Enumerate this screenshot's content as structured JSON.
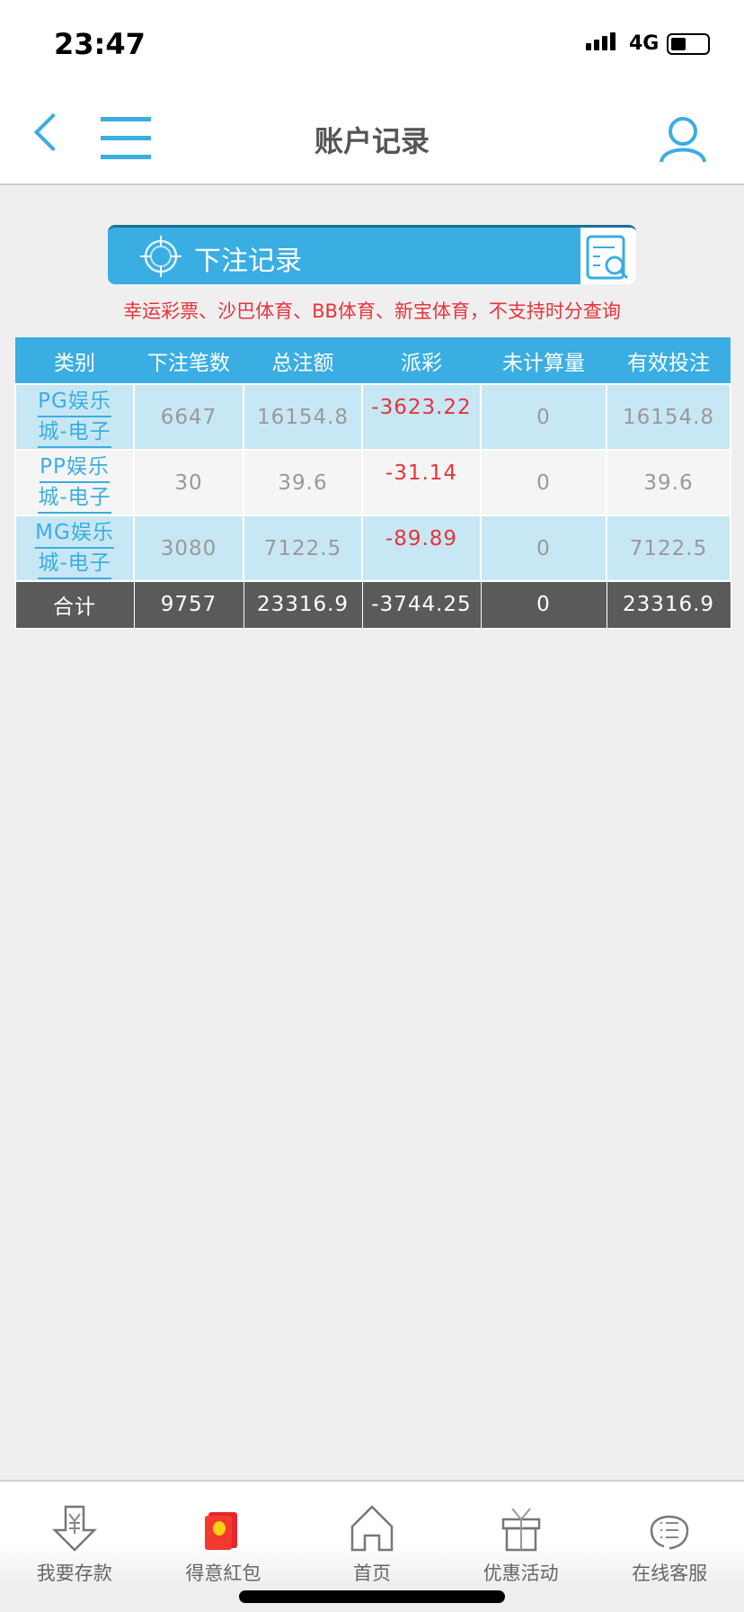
{
  "status": {
    "time": "23:47",
    "network": "4G"
  },
  "nav": {
    "title": "账户记录"
  },
  "banner": {
    "label": "下注记录"
  },
  "note": "幸运彩票、沙巴体育、BB体育、新宝体育，不支持时分查询",
  "table": {
    "headers": [
      "类别",
      "下注笔数",
      "总注额",
      "派彩",
      "未计算量",
      "有效投注"
    ],
    "rows": [
      {
        "category_line1": "PG娱乐",
        "category_line2": "城-电子",
        "count": "6647",
        "total": "16154.8",
        "payout": "-3623.22",
        "unsettled": "0",
        "valid": "16154.8"
      },
      {
        "category_line1": "PP娱乐",
        "category_line2": "城-电子",
        "count": "30",
        "total": "39.6",
        "payout": "-31.14",
        "unsettled": "0",
        "valid": "39.6"
      },
      {
        "category_line1": "MG娱乐",
        "category_line2": "城-电子",
        "count": "3080",
        "total": "7122.5",
        "payout": "-89.89",
        "unsettled": "0",
        "valid": "7122.5"
      }
    ],
    "totals": {
      "label": "合计",
      "count": "9757",
      "total": "23316.9",
      "payout": "-3744.25",
      "unsettled": "0",
      "valid": "23316.9"
    }
  },
  "tabs": [
    {
      "label": "我要存款",
      "icon": "deposit-icon"
    },
    {
      "label": "得意紅包",
      "icon": "red-envelope-icon"
    },
    {
      "label": "首页",
      "icon": "home-icon"
    },
    {
      "label": "优惠活动",
      "icon": "gift-icon"
    },
    {
      "label": "在线客服",
      "icon": "support-icon"
    }
  ],
  "colors": {
    "accent": "#3aaee2",
    "negative": "#e8333b",
    "total_row": "#5a5a5a"
  }
}
